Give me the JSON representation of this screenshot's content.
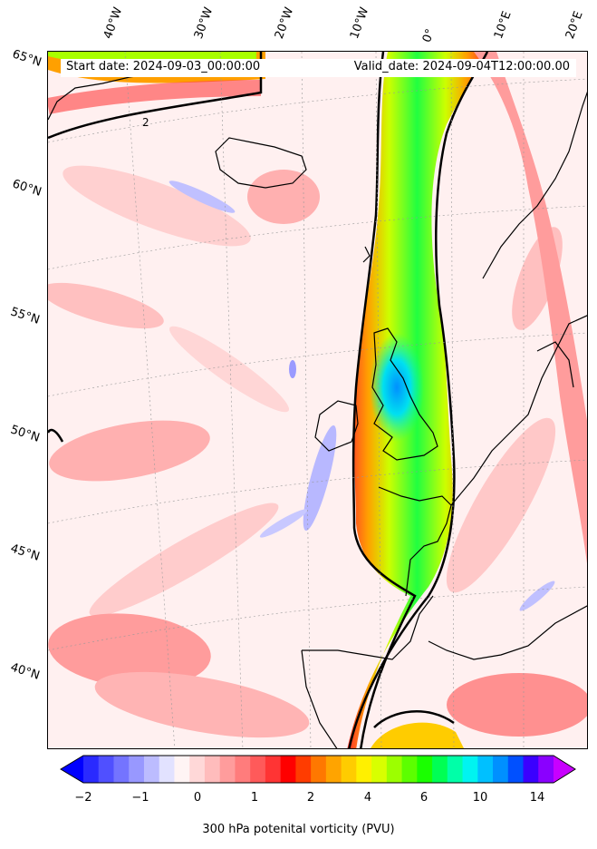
{
  "header": {
    "start_date": "Start date: 2024-09-03_00:00:00",
    "valid_date": "Valid_date: 2024-09-04T12:00:00.00"
  },
  "map": {
    "lat_labels": [
      "65°N",
      "60°N",
      "55°N",
      "50°N",
      "45°N",
      "40°N"
    ],
    "lon_labels": [
      "40°W",
      "30°W",
      "20°W",
      "10°W",
      "0°",
      "10°E",
      "20°E"
    ],
    "contour_label": "2"
  },
  "colorbar": {
    "label": "300 hPa potenital vorticity (PVU)",
    "ticks": [
      "−2",
      "−1",
      "0",
      "1",
      "2",
      "4",
      "6",
      "10",
      "14"
    ],
    "colors": [
      "#0000ff",
      "#2a2aff",
      "#5050ff",
      "#7474ff",
      "#9898ff",
      "#bcbcff",
      "#e2e2ff",
      "#fff4f4",
      "#ffd8d8",
      "#ffbcbc",
      "#ff9c9c",
      "#ff7c7c",
      "#ff5a5a",
      "#ff3434",
      "#ff0000",
      "#ff3c00",
      "#ff7800",
      "#ffa400",
      "#ffcc00",
      "#fff000",
      "#d8ff00",
      "#9cff00",
      "#5cff00",
      "#1aff00",
      "#00ff54",
      "#00ffa8",
      "#00f4f0",
      "#00c0ff",
      "#0090ff",
      "#0050ff",
      "#3a00ff",
      "#8a00ff",
      "#c800ff"
    ]
  }
}
